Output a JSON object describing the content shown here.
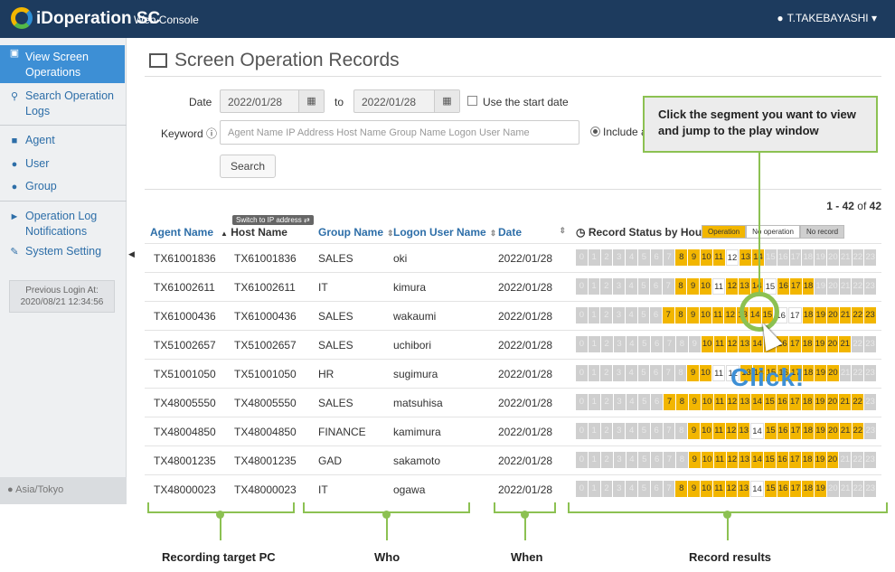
{
  "header": {
    "brand": "iDoperation SC",
    "sub": "Web Console",
    "user": "T.TAKEBAYASHI"
  },
  "sidebar": {
    "items": [
      {
        "label": "View Screen Operations",
        "icon": "film-icon",
        "active": true
      },
      {
        "label": "Search Operation Logs",
        "icon": "search-icon"
      },
      {
        "label": "Agent",
        "icon": "video-camera-icon"
      },
      {
        "label": "User",
        "icon": "user-icon"
      },
      {
        "label": "Group",
        "icon": "users-icon"
      },
      {
        "label": "Operation Log Notifications",
        "icon": "megaphone-icon"
      },
      {
        "label": "System Setting",
        "icon": "wrench-icon"
      }
    ],
    "prev_login_label": "Previous Login At:",
    "prev_login_value": "2020/08/21 12:34:56",
    "timezone": "Asia/Tokyo"
  },
  "page": {
    "title": "Screen Operation Records"
  },
  "form": {
    "date_label": "Date",
    "date_from": "2022/01/28",
    "to_label": "to",
    "date_to": "2022/01/28",
    "use_start": "Use the start date",
    "keyword_label": "Keyword",
    "keyword_placeholder": "Agent Name IP Address Host Name Group Name Logon User Name",
    "include": "Include a",
    "search": "Search"
  },
  "table": {
    "count_range": "1 - 42",
    "count_of": "of",
    "count_total": "42",
    "switch_ip": "Switch to IP address",
    "headers": {
      "agent": "Agent Name",
      "host": "Host Name",
      "group": "Group Name",
      "logon": "Logon User Name",
      "date": "Date",
      "status": "Record Status by Hour"
    },
    "legend": {
      "op": "Operation",
      "noop": "No operation",
      "norec": "No record"
    },
    "colors": {
      "operation": "#f2b600",
      "no_operation": "#ffffff",
      "no_record": "#cfcfcf"
    },
    "rows": [
      {
        "agent": "TX61001836",
        "host": "TX61001836",
        "group": "SALES",
        "logon": "oki",
        "date": "2022/01/28",
        "hours": "nnnnnnnnoooowoonnnnnnnn"
      },
      {
        "agent": "TX61002611",
        "host": "TX61002611",
        "group": "IT",
        "logon": "kimura",
        "date": "2022/01/28",
        "hours": "nnnnnnnnooowooowooonnnn"
      },
      {
        "agent": "TX61000436",
        "host": "TX61000436",
        "group": "SALES",
        "logon": "wakaumi",
        "date": "2022/01/28",
        "hours": "nnnnnnnooooooooowwooooooo"
      },
      {
        "agent": "TX51002657",
        "host": "TX51002657",
        "group": "SALES",
        "logon": "uchibori",
        "date": "2022/01/28",
        "hours": "nnnnnnnnnnoooooooooooonn"
      },
      {
        "agent": "TX51001050",
        "host": "TX51001050",
        "group": "HR",
        "logon": "sugimura",
        "date": "2022/01/28",
        "hours": "nnnnnnnnnoowwoooooooonnn"
      },
      {
        "agent": "TX48005550",
        "host": "TX48005550",
        "group": "SALES",
        "logon": "matsuhisa",
        "date": "2022/01/28",
        "hours": "nnnnnnnoooooooooooooooon"
      },
      {
        "agent": "TX48004850",
        "host": "TX48004850",
        "group": "FINANCE",
        "logon": "kamimura",
        "date": "2022/01/28",
        "hours": "nnnnnnnnnooooowoooooooon"
      },
      {
        "agent": "TX48001235",
        "host": "TX48001235",
        "group": "GAD",
        "logon": "sakamoto",
        "date": "2022/01/28",
        "hours": "nnnnnnnnnoooooooooooonnn"
      },
      {
        "agent": "TX48000023",
        "host": "TX48000023",
        "group": "IT",
        "logon": "ogawa",
        "date": "2022/01/28",
        "hours": "nnnnnnnnoooooowooooonnnn"
      }
    ]
  },
  "callout": {
    "text": "Click the segment you want to view and jump to the play window",
    "click": "Click!"
  },
  "captions": {
    "pc": "Recording target PC",
    "who": "Who",
    "when": "When",
    "results": "Record results"
  }
}
